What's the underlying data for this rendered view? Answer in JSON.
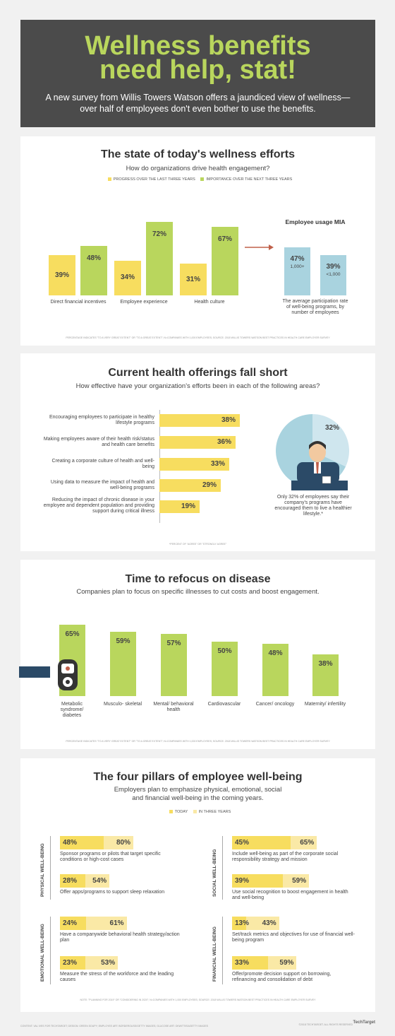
{
  "header": {
    "title_line1": "Wellness benefits",
    "title_line2": "need help, stat!",
    "subtitle": "A new survey from Willis Towers Watson offers a jaundiced view of wellness—over half of employees don't even bother to use the benefits."
  },
  "colors": {
    "header_bg": "#4b4b4b",
    "title_green": "#b9d65d",
    "progress_yellow": "#f7dd5f",
    "importance_green": "#b9d65d",
    "usage_blue": "#a9d3df",
    "arrow": "#c0604a"
  },
  "section1": {
    "title": "The state of today's wellness efforts",
    "subtitle": "How do organizations drive health engagement?",
    "legend_progress": "PROGRESS OVER THE LAST THREE YEARS",
    "legend_importance": "IMPORTANCE OVER THE NEXT THREE YEARS",
    "usage_title": "Employee usage MIA",
    "usage_caption": "The average participation rate of well-being programs, by number of employees",
    "footnote": "PERCENTAGE INDICATES \"TO A VERY GREAT EXTENT\" OR \"TO A GREAT EXTENT\"; N=COMPANIES WITH 1,000 EMPLOYEES; SOURCE: 2018 WILLIS TOWERS WATSON BEST PRACTICES IN HEALTH CARE EMPLOYER SURVEY"
  },
  "section2": {
    "title": "Current health offerings fall short",
    "subtitle": "How effective have your organization's efforts been in each of the following areas?",
    "pie_value": "32%",
    "pie_caption": "Only 32% of employees say their company's programs have encouraged them to live a healthier lifestyle.*",
    "footnote": "*PERCENT OF \"AGREE\" OR \"STRONGLY AGREE\""
  },
  "section3": {
    "title": "Time to refocus on disease",
    "subtitle": "Companies plan to focus on specific illnesses to cut costs and boost engagement.",
    "footnote": "PERCENTAGE INDICATES \"TO A VERY GREAT EXTENT\" OR \"TO A GREAT EXTENT\"; N=COMPANIES WITH 1,000 EMPLOYEES; SOURCE: 2018 WILLIS TOWERS WATSON BEST PRACTICES IN HEALTH CARE EMPLOYER SURVEY"
  },
  "section4": {
    "title": "The four pillars of employee well-being",
    "subtitle_line1": "Employers plan to emphasize physical, emotional, social",
    "subtitle_line2": "and financial well-being in the coming years.",
    "legend_today": "TODAY",
    "legend_three": "IN THREE YEARS",
    "footnote": "NOTE: \"PLANNING FOR 2019\" OR \"CONSIDERING IN 2020\"; N=COMPANIES WITH 1,000 EMPLOYEES; SOURCE: 2018 WILLIS TOWERS WATSON BEST PRACTICES IN HEALTH CARE EMPLOYER SURVEY"
  },
  "credits": {
    "left": "CONTENT: VAL IVES FOR TECHTARGET; DESIGN: GREEN SOUPY; EMPLOYEE ART: BORDEROUSS/GETTY IMAGES; GLUCOSE ART: OKWITT/ISAGETTY IMAGES",
    "right": "©2018 TECHTARGET. ALL RIGHTS RESERVED",
    "logo": "TechTarget"
  },
  "chart_data": [
    {
      "type": "bar",
      "title": "The state of today's wellness efforts",
      "categories": [
        "Direct financial incentives",
        "Employee experience",
        "Health culture"
      ],
      "series": [
        {
          "name": "PROGRESS OVER THE LAST THREE YEARS",
          "values": [
            39,
            34,
            31
          ],
          "labels": [
            "39%",
            "34%",
            "31%"
          ]
        },
        {
          "name": "IMPORTANCE OVER THE NEXT THREE YEARS",
          "values": [
            48,
            72,
            67
          ],
          "labels": [
            "48%",
            "72%",
            "67%"
          ]
        }
      ],
      "ylim": [
        0,
        80
      ]
    },
    {
      "type": "bar",
      "title": "Employee usage MIA",
      "categories": [
        "1,000+",
        "<1,000"
      ],
      "values": [
        47,
        39
      ],
      "labels": [
        "47%",
        "39%"
      ],
      "ylim": [
        0,
        80
      ]
    },
    {
      "type": "bar",
      "orientation": "horizontal",
      "title": "Current health offerings fall short",
      "categories": [
        "Encouraging employees to participate in healthy lifestyle programs",
        "Making employees aware of their health risk/status and health care benefits",
        "Creating a corporate culture of health and well-being",
        "Using data to measure the impact of health and well-being programs",
        "Reducing the impact of chronic disease in your employee and dependent population and providing support during critical illness"
      ],
      "values": [
        38,
        36,
        33,
        29,
        19
      ],
      "labels": [
        "38%",
        "36%",
        "33%",
        "29%",
        "19%"
      ],
      "xlim": [
        0,
        40
      ]
    },
    {
      "type": "pie",
      "slices": [
        {
          "value": 32,
          "label": "32%"
        },
        {
          "value": 68
        }
      ]
    },
    {
      "type": "bar",
      "title": "Time to refocus on disease",
      "categories": [
        "Metabolic syndrome/ diabetes",
        "Musculo- skeletal",
        "Mental/ behavioral health",
        "Cardiovascular",
        "Cancer/ oncology",
        "Maternity/ infertility"
      ],
      "values": [
        65,
        59,
        57,
        50,
        48,
        38
      ],
      "labels": [
        "65%",
        "59%",
        "57%",
        "50%",
        "48%",
        "38%"
      ],
      "ylim": [
        0,
        70
      ]
    },
    {
      "type": "bar",
      "orientation": "horizontal",
      "title": "The four pillars of employee well-being",
      "groups": [
        {
          "name": "PHYSICAL WELL-BEING",
          "items": [
            {
              "text": "Sponsor programs or pilots that target specific conditions or high-cost cases",
              "today": 48,
              "three": 80,
              "today_label": "48%",
              "three_label": "80%"
            },
            {
              "text": "Offer apps/programs to support sleep relaxation",
              "today": 28,
              "three": 54,
              "today_label": "28%",
              "three_label": "54%"
            }
          ]
        },
        {
          "name": "SOCIAL WELL-BEING",
          "items": [
            {
              "text": "Include well-being as part of the corporate social responsibility strategy and mission",
              "today": 45,
              "three": 65,
              "today_label": "45%",
              "three_label": "65%"
            },
            {
              "text": "Use social recognition to boost engagement in health and well-being",
              "today": 39,
              "three": 59,
              "today_label": "39%",
              "three_label": "59%"
            }
          ]
        },
        {
          "name": "EMOTIONAL WELL-BEING",
          "items": [
            {
              "text": "Have a companywide behavioral health strategy/action plan",
              "today": 24,
              "three": 61,
              "today_label": "24%",
              "three_label": "61%"
            },
            {
              "text": "Measure the stress of the workforce and the leading causes",
              "today": 23,
              "three": 53,
              "today_label": "23%",
              "three_label": "53%"
            }
          ]
        },
        {
          "name": "FINANCIAL WELL-BEING",
          "items": [
            {
              "text": "Set/track metrics and objectives for use of financial well-being program",
              "today": 13,
              "three": 43,
              "today_label": "13%",
              "three_label": "43%"
            },
            {
              "text": "Offer/promote decision support on borrowing, refinancing and consolidation of debt",
              "today": 33,
              "three": 59,
              "today_label": "33%",
              "three_label": "59%"
            }
          ]
        }
      ],
      "xlim": [
        0,
        100
      ]
    }
  ]
}
